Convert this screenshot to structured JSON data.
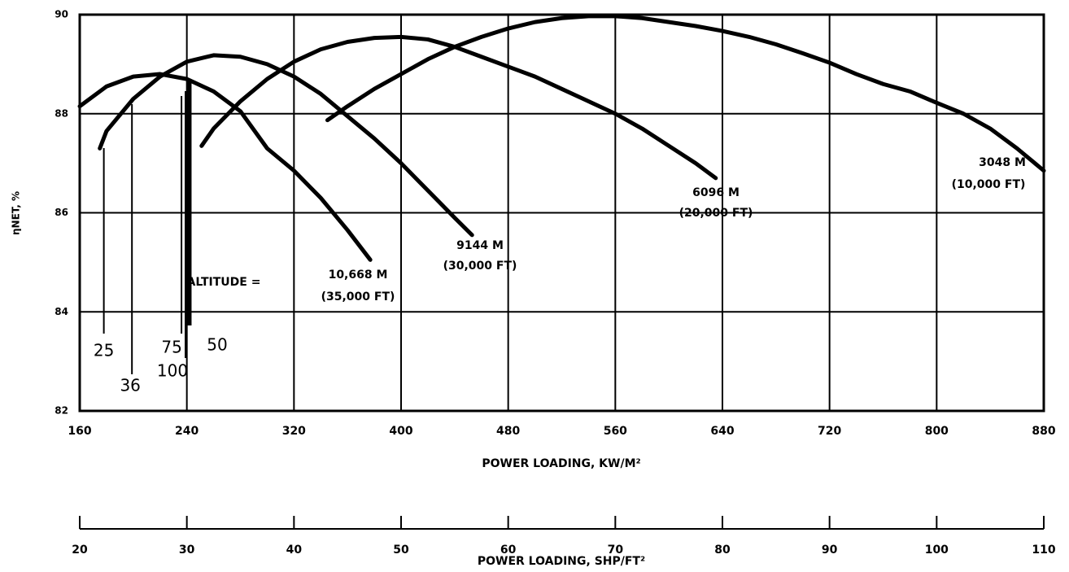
{
  "chart_data": {
    "type": "line",
    "ylabel": "ηNET, %",
    "xlabel": "POWER LOADING, KW/M²",
    "x2label": "POWER LOADING, SHP/FT²",
    "xlim": [
      160,
      880
    ],
    "xticks": [
      160,
      240,
      320,
      400,
      480,
      560,
      640,
      720,
      800,
      880
    ],
    "ylim": [
      82,
      90
    ],
    "yticks": [
      82,
      84,
      86,
      88,
      90
    ],
    "x2lim": [
      20,
      110
    ],
    "x2ticks": [
      20,
      30,
      40,
      50,
      60,
      70,
      80,
      90,
      100,
      110
    ],
    "grid": true,
    "color": "#000000",
    "series": [
      {
        "name": "10,668 M",
        "subname": "(35,000 FT)",
        "x": [
          160,
          180,
          200,
          220,
          240,
          260,
          280,
          300,
          320,
          340,
          360,
          377
        ],
        "values": [
          88.15,
          88.55,
          88.75,
          88.8,
          88.7,
          88.45,
          88.05,
          87.3,
          86.85,
          86.3,
          85.65,
          85.05
        ]
      },
      {
        "name": "9144 M",
        "subname": "(30,000 FT)",
        "x": [
          175,
          180,
          200,
          220,
          240,
          260,
          280,
          300,
          320,
          340,
          360,
          380,
          400,
          420,
          440,
          453
        ],
        "values": [
          87.3,
          87.65,
          88.3,
          88.75,
          89.05,
          89.18,
          89.15,
          89.0,
          88.75,
          88.4,
          87.95,
          87.5,
          87.0,
          86.45,
          85.9,
          85.55
        ]
      },
      {
        "name": "6096 M",
        "subname": "(20,000 FT)",
        "x": [
          251,
          260,
          280,
          300,
          320,
          340,
          360,
          380,
          400,
          420,
          440,
          460,
          480,
          500,
          520,
          540,
          560,
          580,
          600,
          620,
          635
        ],
        "values": [
          87.35,
          87.7,
          88.25,
          88.7,
          89.05,
          89.3,
          89.45,
          89.53,
          89.55,
          89.5,
          89.35,
          89.15,
          88.95,
          88.75,
          88.5,
          88.25,
          88.0,
          87.7,
          87.35,
          87.0,
          86.7
        ]
      },
      {
        "name": "3048 M",
        "subname": "(10,000 FT)",
        "x": [
          345,
          360,
          380,
          400,
          420,
          440,
          460,
          480,
          500,
          520,
          540,
          560,
          580,
          600,
          620,
          640,
          660,
          680,
          700,
          720,
          740,
          760,
          780,
          800,
          820,
          840,
          860,
          880
        ],
        "values": [
          87.87,
          88.15,
          88.5,
          88.8,
          89.1,
          89.35,
          89.55,
          89.72,
          89.85,
          89.93,
          89.97,
          89.97,
          89.93,
          89.85,
          89.77,
          89.67,
          89.55,
          89.4,
          89.22,
          89.03,
          88.8,
          88.6,
          88.45,
          88.22,
          88.0,
          87.7,
          87.3,
          86.85
        ]
      }
    ],
    "altitude_label": "ALTITUDE =",
    "annotations": [
      {
        "text": "25",
        "x": 178
      },
      {
        "text": "36",
        "x": 199
      },
      {
        "text": "75",
        "x": 236
      },
      {
        "text": "100",
        "x": 239
      },
      {
        "text": "50",
        "x": 242
      }
    ]
  }
}
